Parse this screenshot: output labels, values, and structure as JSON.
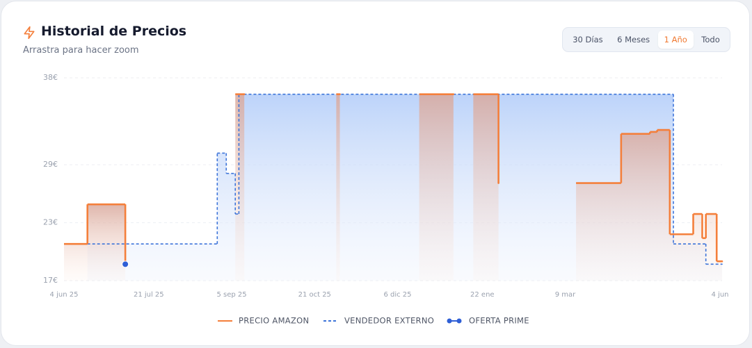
{
  "controls": {
    "ranges": [
      "30 Días",
      "6 Meses",
      "1 Año",
      "Todo"
    ],
    "active": 2
  },
  "chart_data": {
    "type": "line",
    "title": "Historial de Precios",
    "subtitle": "Arrastra para hacer zoom",
    "xlim": [
      "2025-06-04",
      "2026-06-04"
    ],
    "xticks": [
      {
        "value": "2025-06-04",
        "label": "4 jun 25"
      },
      {
        "value": "2025-07-21",
        "label": "21 jul 25"
      },
      {
        "value": "2025-09-05",
        "label": "5 sep 25"
      },
      {
        "value": "2025-10-21",
        "label": "21 oct 25"
      },
      {
        "value": "2025-12-06",
        "label": "6 dic 25"
      },
      {
        "value": "2026-01-22",
        "label": "22 ene"
      },
      {
        "value": "2026-03-09",
        "label": "9 mar"
      },
      {
        "value": "2026-06-04",
        "label": "4 jun"
      }
    ],
    "ylim": [
      17,
      38
    ],
    "yticks": [
      {
        "value": 17,
        "label": "17€"
      },
      {
        "value": 23,
        "label": "23€"
      },
      {
        "value": 29,
        "label": "29€"
      },
      {
        "value": 38,
        "label": "38€"
      }
    ],
    "grid": true,
    "series": [
      {
        "name": "VENDEDOR EXTERNO",
        "color": "#3d74d9",
        "style": "dashed",
        "x": [
          "2025-06-17",
          "2025-08-28",
          "2025-09-02",
          "2025-09-07",
          "2025-09-09",
          "2026-05-08",
          "2026-05-26",
          "2026-06-04"
        ],
        "values": [
          20.8,
          30.2,
          28.1,
          23.9,
          36.3,
          20.8,
          18.7,
          18.7
        ]
      },
      {
        "name": "PRECIO AMAZON",
        "color": "#f47f3b",
        "style": "solid",
        "x": [
          "2025-06-04",
          "2025-06-17",
          "2025-07-08",
          null,
          "2025-09-07",
          "2025-09-12",
          null,
          "2025-11-02",
          "2025-11-04",
          null,
          "2025-12-18",
          "2026-01-06",
          null,
          "2026-01-17",
          "2026-01-31",
          null,
          "2026-03-15",
          "2026-04-09",
          "2026-04-25",
          "2026-04-29",
          "2026-05-06",
          "2026-05-19",
          "2026-05-24",
          "2026-05-26",
          "2026-06-01",
          "2026-06-04"
        ],
        "values": [
          20.8,
          24.9,
          18.7,
          null,
          36.3,
          36.3,
          null,
          36.3,
          36.3,
          null,
          36.3,
          36.3,
          null,
          36.3,
          27.1,
          null,
          27.1,
          32.2,
          32.4,
          32.6,
          21.8,
          23.9,
          21.4,
          23.9,
          19.0,
          19.0
        ]
      },
      {
        "name": "OFERTA PRIME",
        "color": "#2f5fd6",
        "style": "marker",
        "x": [
          "2025-07-08"
        ],
        "values": [
          18.7
        ]
      }
    ]
  }
}
